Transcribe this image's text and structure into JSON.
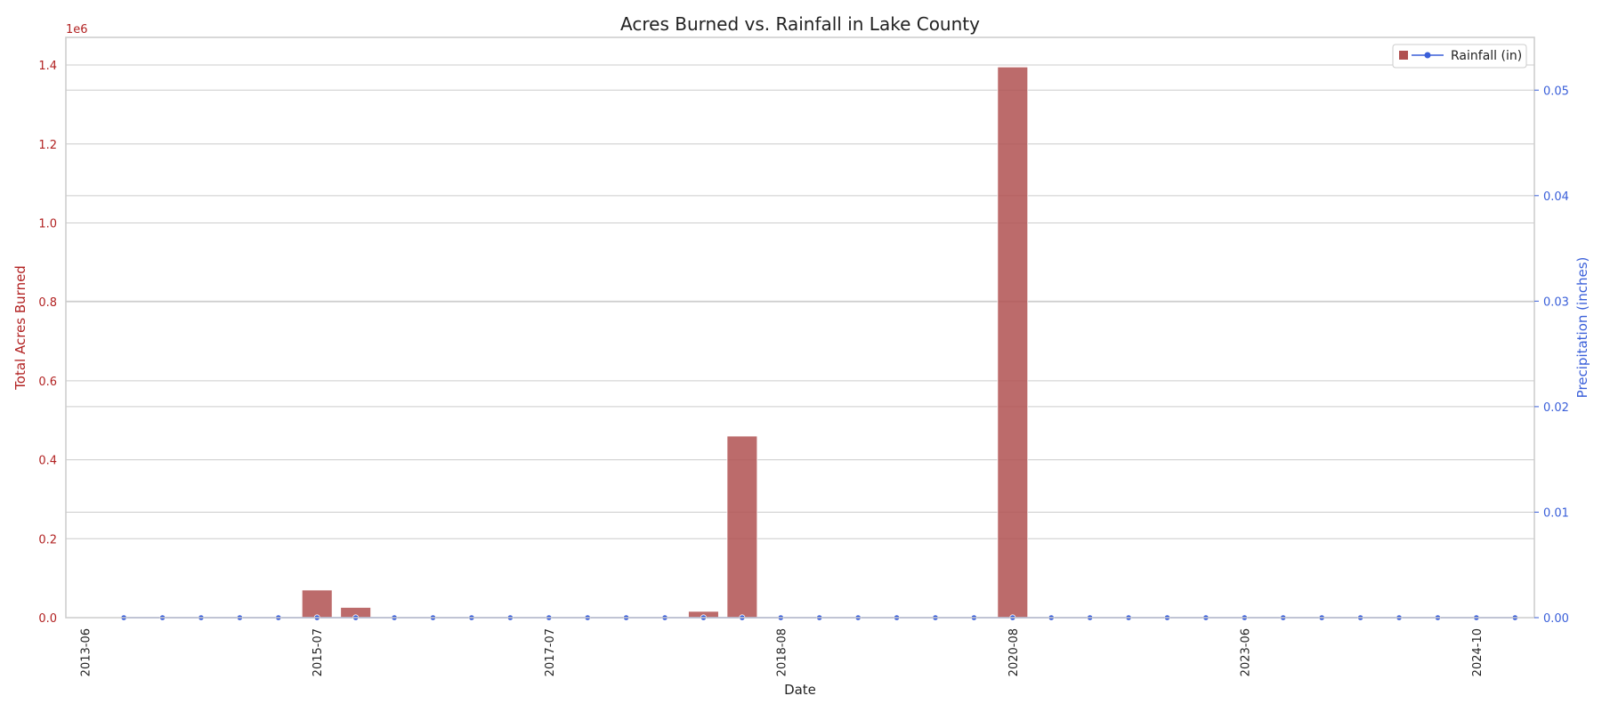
{
  "chart_data": {
    "type": "bar",
    "title": "Acres Burned vs. Rainfall in Lake County",
    "xlabel": "Date",
    "ylabel_left": "Total Acres Burned",
    "ylabel_right": "Precipitation (inches)",
    "left_scale_label": "1e6",
    "left_scale_factor": 1000000,
    "categories": [
      "2013-06",
      "",
      "",
      "",
      "",
      "",
      "2015-07",
      "",
      "",
      "",
      "",
      "",
      "2017-07",
      "",
      "",
      "",
      "",
      "",
      "2018-08",
      "",
      "",
      "",
      "",
      "",
      "2020-08",
      "",
      "",
      "",
      "",
      "",
      "2023-06",
      "",
      "",
      "",
      "",
      "",
      "2024-10",
      ""
    ],
    "x_tick_labels": [
      "2013-06",
      "2015-07",
      "2017-07",
      "2018-08",
      "2020-08",
      "2023-06",
      "2024-10"
    ],
    "x_tick_indices": [
      0,
      6,
      12,
      18,
      24,
      30,
      36
    ],
    "series": [
      {
        "name": "",
        "type": "bar",
        "axis": "left",
        "color": "#b05151",
        "values": [
          0,
          0,
          0,
          0,
          0,
          1500,
          70000,
          26000,
          0,
          0,
          0,
          1200,
          0,
          0,
          0,
          0,
          16000,
          460000,
          0,
          0,
          0,
          0,
          0,
          0,
          1395000,
          0,
          0,
          0,
          0,
          0,
          0,
          0,
          0,
          0,
          1200,
          0,
          0,
          0
        ]
      },
      {
        "name": "Rainfall (in)",
        "type": "line",
        "axis": "right",
        "color": "#3a5fd9",
        "values": [
          0,
          0,
          0,
          0,
          0,
          0,
          0,
          0,
          0,
          0,
          0,
          0,
          0,
          0,
          0,
          0,
          0,
          0,
          0,
          0,
          0,
          0,
          0,
          0,
          0,
          0,
          0,
          0,
          0,
          0,
          0,
          0,
          0,
          0,
          0,
          0,
          0,
          0
        ]
      }
    ],
    "ylim_left": [
      0,
      1470000
    ],
    "ylim_right": [
      0,
      0.055
    ],
    "yticks_left": [
      0,
      0.2,
      0.4,
      0.6,
      0.8,
      1.0,
      1.2,
      1.4
    ],
    "yticks_right": [
      0.0,
      0.01,
      0.02,
      0.03,
      0.04,
      0.05
    ],
    "grid": true,
    "legend_placement": "top-right",
    "colors": {
      "left_axis": "#b22222",
      "right_axis": "#3a5fd9",
      "grid": "#cccccc",
      "frame": "#cccccc"
    }
  }
}
